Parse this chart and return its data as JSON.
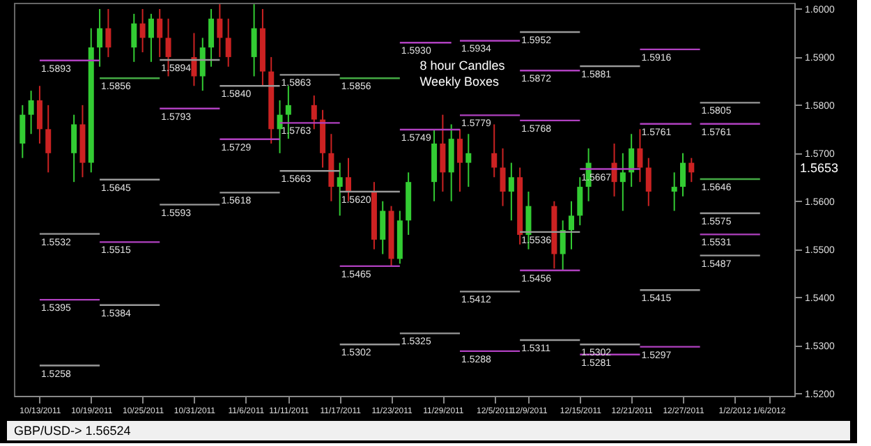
{
  "chart_data": {
    "type": "candlestick",
    "x": [
      "2011-10-11",
      "2011-10-12",
      "2011-10-13",
      "2011-10-14",
      "2011-10-17",
      "2011-10-18",
      "2011-10-19",
      "2011-10-20",
      "2011-10-21",
      "2011-10-24",
      "2011-10-25",
      "2011-10-26",
      "2011-10-27",
      "2011-10-28",
      "2011-10-31",
      "2011-11-01",
      "2011-11-02",
      "2011-11-03",
      "2011-11-04",
      "2011-11-07",
      "2011-11-08",
      "2011-11-09",
      "2011-11-10",
      "2011-11-11",
      "2011-11-14",
      "2011-11-15",
      "2011-11-16",
      "2011-11-17",
      "2011-11-18",
      "2011-11-21",
      "2011-11-22",
      "2011-11-23",
      "2011-11-24",
      "2011-11-25",
      "2011-11-28",
      "2011-11-29",
      "2011-11-30",
      "2011-12-01",
      "2011-12-02",
      "2011-12-05",
      "2011-12-06",
      "2011-12-07",
      "2011-12-08",
      "2011-12-09",
      "2011-12-12",
      "2011-12-13",
      "2011-12-14",
      "2011-12-15",
      "2011-12-16",
      "2011-12-19",
      "2011-12-20",
      "2011-12-21",
      "2011-12-22",
      "2011-12-23",
      "2011-12-26",
      "2011-12-27",
      "2011-12-28"
    ],
    "ohlc": [
      [
        1.572,
        1.58,
        1.569,
        1.578
      ],
      [
        1.578,
        1.583,
        1.574,
        1.581
      ],
      [
        1.581,
        1.584,
        1.572,
        1.575
      ],
      [
        1.575,
        1.58,
        1.566,
        1.57
      ],
      [
        1.57,
        1.578,
        1.564,
        1.576
      ],
      [
        1.576,
        1.58,
        1.565,
        1.568
      ],
      [
        1.568,
        1.596,
        1.566,
        1.592
      ],
      [
        1.592,
        1.6,
        1.588,
        1.596
      ],
      [
        1.596,
        1.6,
        1.59,
        1.592
      ],
      [
        1.592,
        1.599,
        1.589,
        1.597
      ],
      [
        1.597,
        1.6,
        1.591,
        1.594
      ],
      [
        1.594,
        1.599,
        1.589,
        1.598
      ],
      [
        1.598,
        1.6,
        1.59,
        1.594
      ],
      [
        1.594,
        1.598,
        1.586,
        1.59
      ],
      [
        1.59,
        1.595,
        1.584,
        1.586
      ],
      [
        1.586,
        1.594,
        1.583,
        1.592
      ],
      [
        1.592,
        1.6,
        1.588,
        1.598
      ],
      [
        1.598,
        1.601,
        1.59,
        1.594
      ],
      [
        1.594,
        1.598,
        1.588,
        1.59
      ],
      [
        1.59,
        1.601,
        1.586,
        1.596
      ],
      [
        1.596,
        1.6,
        1.584,
        1.587
      ],
      [
        1.587,
        1.59,
        1.572,
        1.575
      ],
      [
        1.575,
        1.581,
        1.57,
        1.578
      ],
      [
        1.578,
        1.584,
        1.573,
        1.58
      ],
      [
        1.58,
        1.582,
        1.575,
        1.577
      ],
      [
        1.577,
        1.579,
        1.567,
        1.57
      ],
      [
        1.57,
        1.574,
        1.56,
        1.563
      ],
      [
        1.563,
        1.568,
        1.557,
        1.565
      ],
      [
        1.565,
        1.569,
        1.56,
        1.562
      ],
      [
        1.562,
        1.564,
        1.55,
        1.552
      ],
      [
        1.552,
        1.56,
        1.549,
        1.558
      ],
      [
        1.558,
        1.559,
        1.5465,
        1.548
      ],
      [
        1.548,
        1.558,
        1.547,
        1.556
      ],
      [
        1.556,
        1.566,
        1.553,
        1.564
      ],
      [
        1.564,
        1.575,
        1.56,
        1.572
      ],
      [
        1.572,
        1.578,
        1.562,
        1.566
      ],
      [
        1.566,
        1.576,
        1.56,
        1.573
      ],
      [
        1.573,
        1.575,
        1.562,
        1.568
      ],
      [
        1.568,
        1.574,
        1.563,
        1.57
      ],
      [
        1.57,
        1.576,
        1.565,
        1.567
      ],
      [
        1.567,
        1.571,
        1.559,
        1.562
      ],
      [
        1.562,
        1.568,
        1.556,
        1.565
      ],
      [
        1.565,
        1.567,
        1.551,
        1.553
      ],
      [
        1.553,
        1.562,
        1.55,
        1.559
      ],
      [
        1.559,
        1.56,
        1.546,
        1.549
      ],
      [
        1.549,
        1.556,
        1.5456,
        1.554
      ],
      [
        1.554,
        1.56,
        1.55,
        1.557
      ],
      [
        1.557,
        1.565,
        1.555,
        1.563
      ],
      [
        1.563,
        1.571,
        1.56,
        1.568
      ],
      [
        1.568,
        1.572,
        1.561,
        1.564
      ],
      [
        1.564,
        1.57,
        1.558,
        1.566
      ],
      [
        1.566,
        1.574,
        1.563,
        1.571
      ],
      [
        1.571,
        1.575,
        1.564,
        1.567
      ],
      [
        1.567,
        1.569,
        1.559,
        1.562
      ],
      [
        1.562,
        1.566,
        1.558,
        1.563
      ],
      [
        1.563,
        1.57,
        1.561,
        1.568
      ],
      [
        1.568,
        1.569,
        1.564,
        1.566
      ]
    ],
    "colors": [
      "#33cc33",
      "#33cc33",
      "#cc2222",
      "#cc2222",
      "#33cc33",
      "#cc2222",
      "#33cc33",
      "#33cc33",
      "#cc2222",
      "#33cc33",
      "#cc2222",
      "#33cc33",
      "#cc2222",
      "#cc2222",
      "#cc2222",
      "#33cc33",
      "#33cc33",
      "#cc2222",
      "#cc2222",
      "#33cc33",
      "#cc2222",
      "#cc2222",
      "#33cc33",
      "#33cc33",
      "#cc2222",
      "#cc2222",
      "#cc2222",
      "#33cc33",
      "#cc2222",
      "#cc2222",
      "#33cc33",
      "#cc2222",
      "#33cc33",
      "#33cc33",
      "#33cc33",
      "#cc2222",
      "#33cc33",
      "#cc2222",
      "#33cc33",
      "#cc2222",
      "#cc2222",
      "#33cc33",
      "#cc2222",
      "#33cc33",
      "#cc2222",
      "#33cc33",
      "#33cc33",
      "#33cc33",
      "#33cc33",
      "#cc2222",
      "#33cc33",
      "#33cc33",
      "#cc2222",
      "#cc2222",
      "#33cc33",
      "#33cc33",
      "#cc2222"
    ],
    "xlim": [
      "2011-10-10",
      "2012-01-09"
    ],
    "xticks": [
      {
        "value": "2011-10-13",
        "label": "10/13/2011"
      },
      {
        "value": "2011-10-19",
        "label": "10/19/2011"
      },
      {
        "value": "2011-10-25",
        "label": "10/25/2011"
      },
      {
        "value": "2011-10-31",
        "label": "10/31/2011"
      },
      {
        "value": "2011-11-06",
        "label": "11/6/2011"
      },
      {
        "value": "2011-11-11",
        "label": "11/11/2011"
      },
      {
        "value": "2011-11-17",
        "label": "11/17/2011"
      },
      {
        "value": "2011-11-23",
        "label": "11/23/2011"
      },
      {
        "value": "2011-11-29",
        "label": "11/29/2011"
      },
      {
        "value": "2011-12-05",
        "label": "12/5/2011"
      },
      {
        "value": "2011-12-09",
        "label": "12/9/2011"
      },
      {
        "value": "2011-12-15",
        "label": "12/15/2011"
      },
      {
        "value": "2011-12-21",
        "label": "12/21/2011"
      },
      {
        "value": "2011-12-27",
        "label": "12/27/2011"
      },
      {
        "value": "2012-01-02",
        "label": "1/2/2012"
      },
      {
        "value": "2012-01-06",
        "label": "1/6/2012"
      }
    ],
    "ylim": [
      1.5195,
      1.6013
    ],
    "yticks": [
      {
        "value": 1.52,
        "label": "1.5200"
      },
      {
        "value": 1.53,
        "label": "1.5300"
      },
      {
        "value": 1.54,
        "label": "1.5400"
      },
      {
        "value": 1.55,
        "label": "1.5500"
      },
      {
        "value": 1.56,
        "label": "1.5600"
      },
      {
        "value": 1.57,
        "label": "1.5700"
      },
      {
        "value": 1.58,
        "label": "1.5800"
      },
      {
        "value": 1.59,
        "label": "1.5900"
      },
      {
        "value": 1.6,
        "label": "1.6000"
      }
    ],
    "grid": false,
    "series": [
      {
        "type": "line",
        "color": "#b040c0",
        "x": [
          "2011-10-13",
          "2011-10-20"
        ],
        "values": [
          1.5893,
          1.5893
        ]
      },
      {
        "type": "line",
        "color": "#44aa44",
        "x": [
          "2011-10-20",
          "2011-10-27"
        ],
        "values": [
          1.5856,
          1.5856
        ]
      },
      {
        "type": "line",
        "color": "#999999",
        "x": [
          "2011-10-20",
          "2011-10-27"
        ],
        "values": [
          1.5645,
          1.5645
        ]
      },
      {
        "type": "line",
        "color": "#999999",
        "x": [
          "2011-10-27",
          "2011-11-03"
        ],
        "values": [
          1.5894,
          1.5894
        ]
      },
      {
        "type": "line",
        "color": "#b040c0",
        "x": [
          "2011-10-27",
          "2011-11-03"
        ],
        "values": [
          1.5793,
          1.5793
        ]
      },
      {
        "type": "line",
        "color": "#999999",
        "x": [
          "2011-10-27",
          "2011-11-03"
        ],
        "values": [
          1.5593,
          1.5593
        ]
      },
      {
        "type": "line",
        "color": "#999999",
        "x": [
          "2011-11-03",
          "2011-11-10"
        ],
        "values": [
          1.584,
          1.584
        ]
      },
      {
        "type": "line",
        "color": "#b040c0",
        "x": [
          "2011-11-03",
          "2011-11-10"
        ],
        "values": [
          1.5729,
          1.5729
        ]
      },
      {
        "type": "line",
        "color": "#999999",
        "x": [
          "2011-11-03",
          "2011-11-10"
        ],
        "values": [
          1.5618,
          1.5618
        ]
      },
      {
        "type": "line",
        "color": "#999999",
        "x": [
          "2011-11-10",
          "2011-11-17"
        ],
        "values": [
          1.5863,
          1.5863
        ]
      },
      {
        "type": "line",
        "color": "#b040c0",
        "x": [
          "2011-11-10",
          "2011-11-17"
        ],
        "values": [
          1.5763,
          1.5763
        ]
      },
      {
        "type": "line",
        "color": "#999999",
        "x": [
          "2011-11-10",
          "2011-11-17"
        ],
        "values": [
          1.5663,
          1.5663
        ]
      },
      {
        "type": "line",
        "color": "#44aa44",
        "x": [
          "2011-11-17",
          "2011-11-24"
        ],
        "values": [
          1.5856,
          1.5856
        ]
      },
      {
        "type": "line",
        "color": "#999999",
        "x": [
          "2011-11-17",
          "2011-11-24"
        ],
        "values": [
          1.562,
          1.562
        ]
      },
      {
        "type": "line",
        "color": "#b040c0",
        "x": [
          "2011-11-17",
          "2011-11-24"
        ],
        "values": [
          1.5465,
          1.5465
        ]
      },
      {
        "type": "line",
        "color": "#999999",
        "x": [
          "2011-11-17",
          "2011-11-24"
        ],
        "values": [
          1.5302,
          1.5302
        ]
      },
      {
        "type": "line",
        "color": "#b040c0",
        "x": [
          "2011-11-24",
          "2011-11-30"
        ],
        "values": [
          1.593,
          1.593
        ]
      },
      {
        "type": "line",
        "color": "#b040c0",
        "x": [
          "2011-11-24",
          "2011-12-01"
        ],
        "values": [
          1.5749,
          1.5749
        ]
      },
      {
        "type": "line",
        "color": "#999999",
        "x": [
          "2011-11-24",
          "2011-12-01"
        ],
        "values": [
          1.5325,
          1.5325
        ]
      },
      {
        "type": "line",
        "color": "#b040c0",
        "x": [
          "2011-12-01",
          "2011-12-08"
        ],
        "values": [
          1.5934,
          1.5934
        ]
      },
      {
        "type": "line",
        "color": "#b040c0",
        "x": [
          "2011-12-01",
          "2011-12-08"
        ],
        "values": [
          1.5779,
          1.5779
        ]
      },
      {
        "type": "line",
        "color": "#999999",
        "x": [
          "2011-12-01",
          "2011-12-08"
        ],
        "values": [
          1.5412,
          1.5412
        ]
      },
      {
        "type": "line",
        "color": "#b040c0",
        "x": [
          "2011-12-01",
          "2011-12-08"
        ],
        "values": [
          1.5288,
          1.5288
        ]
      },
      {
        "type": "line",
        "color": "#999999",
        "x": [
          "2011-12-08",
          "2011-12-15"
        ],
        "values": [
          1.5952,
          1.5952
        ]
      },
      {
        "type": "line",
        "color": "#b040c0",
        "x": [
          "2011-12-08",
          "2011-12-15"
        ],
        "values": [
          1.5872,
          1.5872
        ]
      },
      {
        "type": "line",
        "color": "#b040c0",
        "x": [
          "2011-12-08",
          "2011-12-15"
        ],
        "values": [
          1.5768,
          1.5768
        ]
      },
      {
        "type": "line",
        "color": "#999999",
        "x": [
          "2011-12-08",
          "2011-12-15"
        ],
        "values": [
          1.5536,
          1.5536
        ]
      },
      {
        "type": "line",
        "color": "#b040c0",
        "x": [
          "2011-12-08",
          "2011-12-15"
        ],
        "values": [
          1.5456,
          1.5456
        ]
      },
      {
        "type": "line",
        "color": "#999999",
        "x": [
          "2011-12-08",
          "2011-12-15"
        ],
        "values": [
          1.5311,
          1.5311
        ]
      },
      {
        "type": "line",
        "color": "#999999",
        "x": [
          "2011-12-15",
          "2011-12-22"
        ],
        "values": [
          1.5881,
          1.5881
        ]
      },
      {
        "type": "line",
        "color": "#b040c0",
        "x": [
          "2011-12-15",
          "2011-12-22"
        ],
        "values": [
          1.5667,
          1.5667
        ]
      },
      {
        "type": "line",
        "color": "#999999",
        "x": [
          "2011-12-15",
          "2011-12-22"
        ],
        "values": [
          1.5302,
          1.5302
        ]
      },
      {
        "type": "line",
        "color": "#b040c0",
        "x": [
          "2011-12-15",
          "2011-12-22"
        ],
        "values": [
          1.5281,
          1.5281
        ]
      },
      {
        "type": "line",
        "color": "#b040c0",
        "x": [
          "2011-12-22",
          "2011-12-29"
        ],
        "values": [
          1.5916,
          1.5916
        ]
      },
      {
        "type": "line",
        "color": "#b040c0",
        "x": [
          "2011-12-22",
          "2011-12-28"
        ],
        "values": [
          1.5761,
          1.5761
        ]
      },
      {
        "type": "line",
        "color": "#999999",
        "x": [
          "2011-12-22",
          "2011-12-29"
        ],
        "values": [
          1.5415,
          1.5415
        ]
      },
      {
        "type": "line",
        "color": "#b040c0",
        "x": [
          "2011-12-22",
          "2011-12-29"
        ],
        "values": [
          1.5297,
          1.5297
        ]
      },
      {
        "type": "line",
        "color": "#999999",
        "x": [
          "2011-12-29",
          "2012-01-05"
        ],
        "values": [
          1.5805,
          1.5805
        ]
      },
      {
        "type": "line",
        "color": "#b040c0",
        "x": [
          "2011-12-29",
          "2012-01-05"
        ],
        "values": [
          1.5761,
          1.5761
        ]
      },
      {
        "type": "line",
        "color": "#44aa44",
        "x": [
          "2011-12-29",
          "2012-01-05"
        ],
        "values": [
          1.5646,
          1.5646
        ]
      },
      {
        "type": "line",
        "color": "#999999",
        "x": [
          "2011-12-29",
          "2012-01-05"
        ],
        "values": [
          1.5575,
          1.5575
        ]
      },
      {
        "type": "line",
        "color": "#b040c0",
        "x": [
          "2011-12-29",
          "2012-01-05"
        ],
        "values": [
          1.5531,
          1.5531
        ]
      },
      {
        "type": "line",
        "color": "#999999",
        "x": [
          "2011-12-29",
          "2012-01-05"
        ],
        "values": [
          1.5487,
          1.5487
        ]
      },
      {
        "type": "line",
        "color": "#999999",
        "x": [
          "2011-10-13",
          "2011-10-20"
        ],
        "values": [
          1.5532,
          1.5532
        ]
      },
      {
        "type": "line",
        "color": "#b040c0",
        "x": [
          "2011-10-13",
          "2011-10-20"
        ],
        "values": [
          1.5395,
          1.5395
        ]
      },
      {
        "type": "line",
        "color": "#999999",
        "x": [
          "2011-10-13",
          "2011-10-20"
        ],
        "values": [
          1.5258,
          1.5258
        ]
      },
      {
        "type": "line",
        "color": "#b040c0",
        "x": [
          "2011-10-20",
          "2011-10-27"
        ],
        "values": [
          1.5515,
          1.5515
        ]
      },
      {
        "type": "line",
        "color": "#999999",
        "x": [
          "2011-10-20",
          "2011-10-27"
        ],
        "values": [
          1.5384,
          1.5384
        ]
      }
    ],
    "annotations": [
      "8 hour Candles",
      "Weekly Boxes",
      "1.5653",
      "GBP/USD-> 1.56524",
      {
        "text": "1.5893",
        "x": "2011-10-13",
        "y": 1.5893
      },
      {
        "text": "1.5856",
        "x": "2011-10-20",
        "y": 1.5856
      },
      {
        "text": "1.5645",
        "x": "2011-10-20",
        "y": 1.5645
      },
      {
        "text": "1.5894",
        "x": "2011-10-27",
        "y": 1.5894
      },
      {
        "text": "1.5793",
        "x": "2011-10-27",
        "y": 1.5793
      },
      {
        "text": "1.5593",
        "x": "2011-10-27",
        "y": 1.5593
      },
      {
        "text": "1.5840",
        "x": "2011-11-03",
        "y": 1.584
      },
      {
        "text": "1.5729",
        "x": "2011-11-03",
        "y": 1.5729
      },
      {
        "text": "1.5618",
        "x": "2011-11-03",
        "y": 1.5618
      },
      {
        "text": "1.5863",
        "x": "2011-11-10",
        "y": 1.5863
      },
      {
        "text": "1.5763",
        "x": "2011-11-10",
        "y": 1.5763
      },
      {
        "text": "1.5663",
        "x": "2011-11-10",
        "y": 1.5663
      },
      {
        "text": "1.5856",
        "x": "2011-11-17",
        "y": 1.5856
      },
      {
        "text": "1.5620",
        "x": "2011-11-17",
        "y": 1.562
      },
      {
        "text": "1.5465",
        "x": "2011-11-17",
        "y": 1.5465
      },
      {
        "text": "1.5302",
        "x": "2011-11-17",
        "y": 1.5302
      },
      {
        "text": "1.5930",
        "x": "2011-11-24",
        "y": 1.593
      },
      {
        "text": "1.5749",
        "x": "2011-11-24",
        "y": 1.5749
      },
      {
        "text": "1.5325",
        "x": "2011-11-24",
        "y": 1.5325
      },
      {
        "text": "1.5934",
        "x": "2011-12-01",
        "y": 1.5934
      },
      {
        "text": "1.5779",
        "x": "2011-12-01",
        "y": 1.5779
      },
      {
        "text": "1.5412",
        "x": "2011-12-01",
        "y": 1.5412
      },
      {
        "text": "1.5288",
        "x": "2011-12-01",
        "y": 1.5288
      },
      {
        "text": "1.5952",
        "x": "2011-12-08",
        "y": 1.5952
      },
      {
        "text": "1.5872",
        "x": "2011-12-08",
        "y": 1.5872
      },
      {
        "text": "1.5768",
        "x": "2011-12-08",
        "y": 1.5768
      },
      {
        "text": "1.5536",
        "x": "2011-12-08",
        "y": 1.5536
      },
      {
        "text": "1.5456",
        "x": "2011-12-08",
        "y": 1.5456
      },
      {
        "text": "1.5311",
        "x": "2011-12-08",
        "y": 1.5311
      },
      {
        "text": "1.5881",
        "x": "2011-12-15",
        "y": 1.5881
      },
      {
        "text": "1.5667",
        "x": "2011-12-15",
        "y": 1.5667
      },
      {
        "text": "1.5302",
        "x": "2011-12-15",
        "y": 1.5302
      },
      {
        "text": "1.5281",
        "x": "2011-12-15",
        "y": 1.5281
      },
      {
        "text": "1.5916",
        "x": "2011-12-22",
        "y": 1.5916
      },
      {
        "text": "1.5761",
        "x": "2011-12-22",
        "y": 1.5761
      },
      {
        "text": "1.5415",
        "x": "2011-12-22",
        "y": 1.5415
      },
      {
        "text": "1.5297",
        "x": "2011-12-22",
        "y": 1.5297
      },
      {
        "text": "1.5805",
        "x": "2011-12-29",
        "y": 1.5805
      },
      {
        "text": "1.5761",
        "x": "2011-12-29",
        "y": 1.5761
      },
      {
        "text": "1.5646",
        "x": "2011-12-29",
        "y": 1.5646
      },
      {
        "text": "1.5575",
        "x": "2011-12-29",
        "y": 1.5575
      },
      {
        "text": "1.5531",
        "x": "2011-12-29",
        "y": 1.5531
      },
      {
        "text": "1.5487",
        "x": "2011-12-29",
        "y": 1.5487
      },
      {
        "text": "1.5532",
        "x": "2011-10-13",
        "y": 1.5532
      },
      {
        "text": "1.5395",
        "x": "2011-10-13",
        "y": 1.5395
      },
      {
        "text": "1.5258",
        "x": "2011-10-13",
        "y": 1.5258
      },
      {
        "text": "1.5515",
        "x": "2011-10-20",
        "y": 1.5515
      },
      {
        "text": "1.5384",
        "x": "2011-10-20",
        "y": 1.5384
      }
    ]
  }
}
